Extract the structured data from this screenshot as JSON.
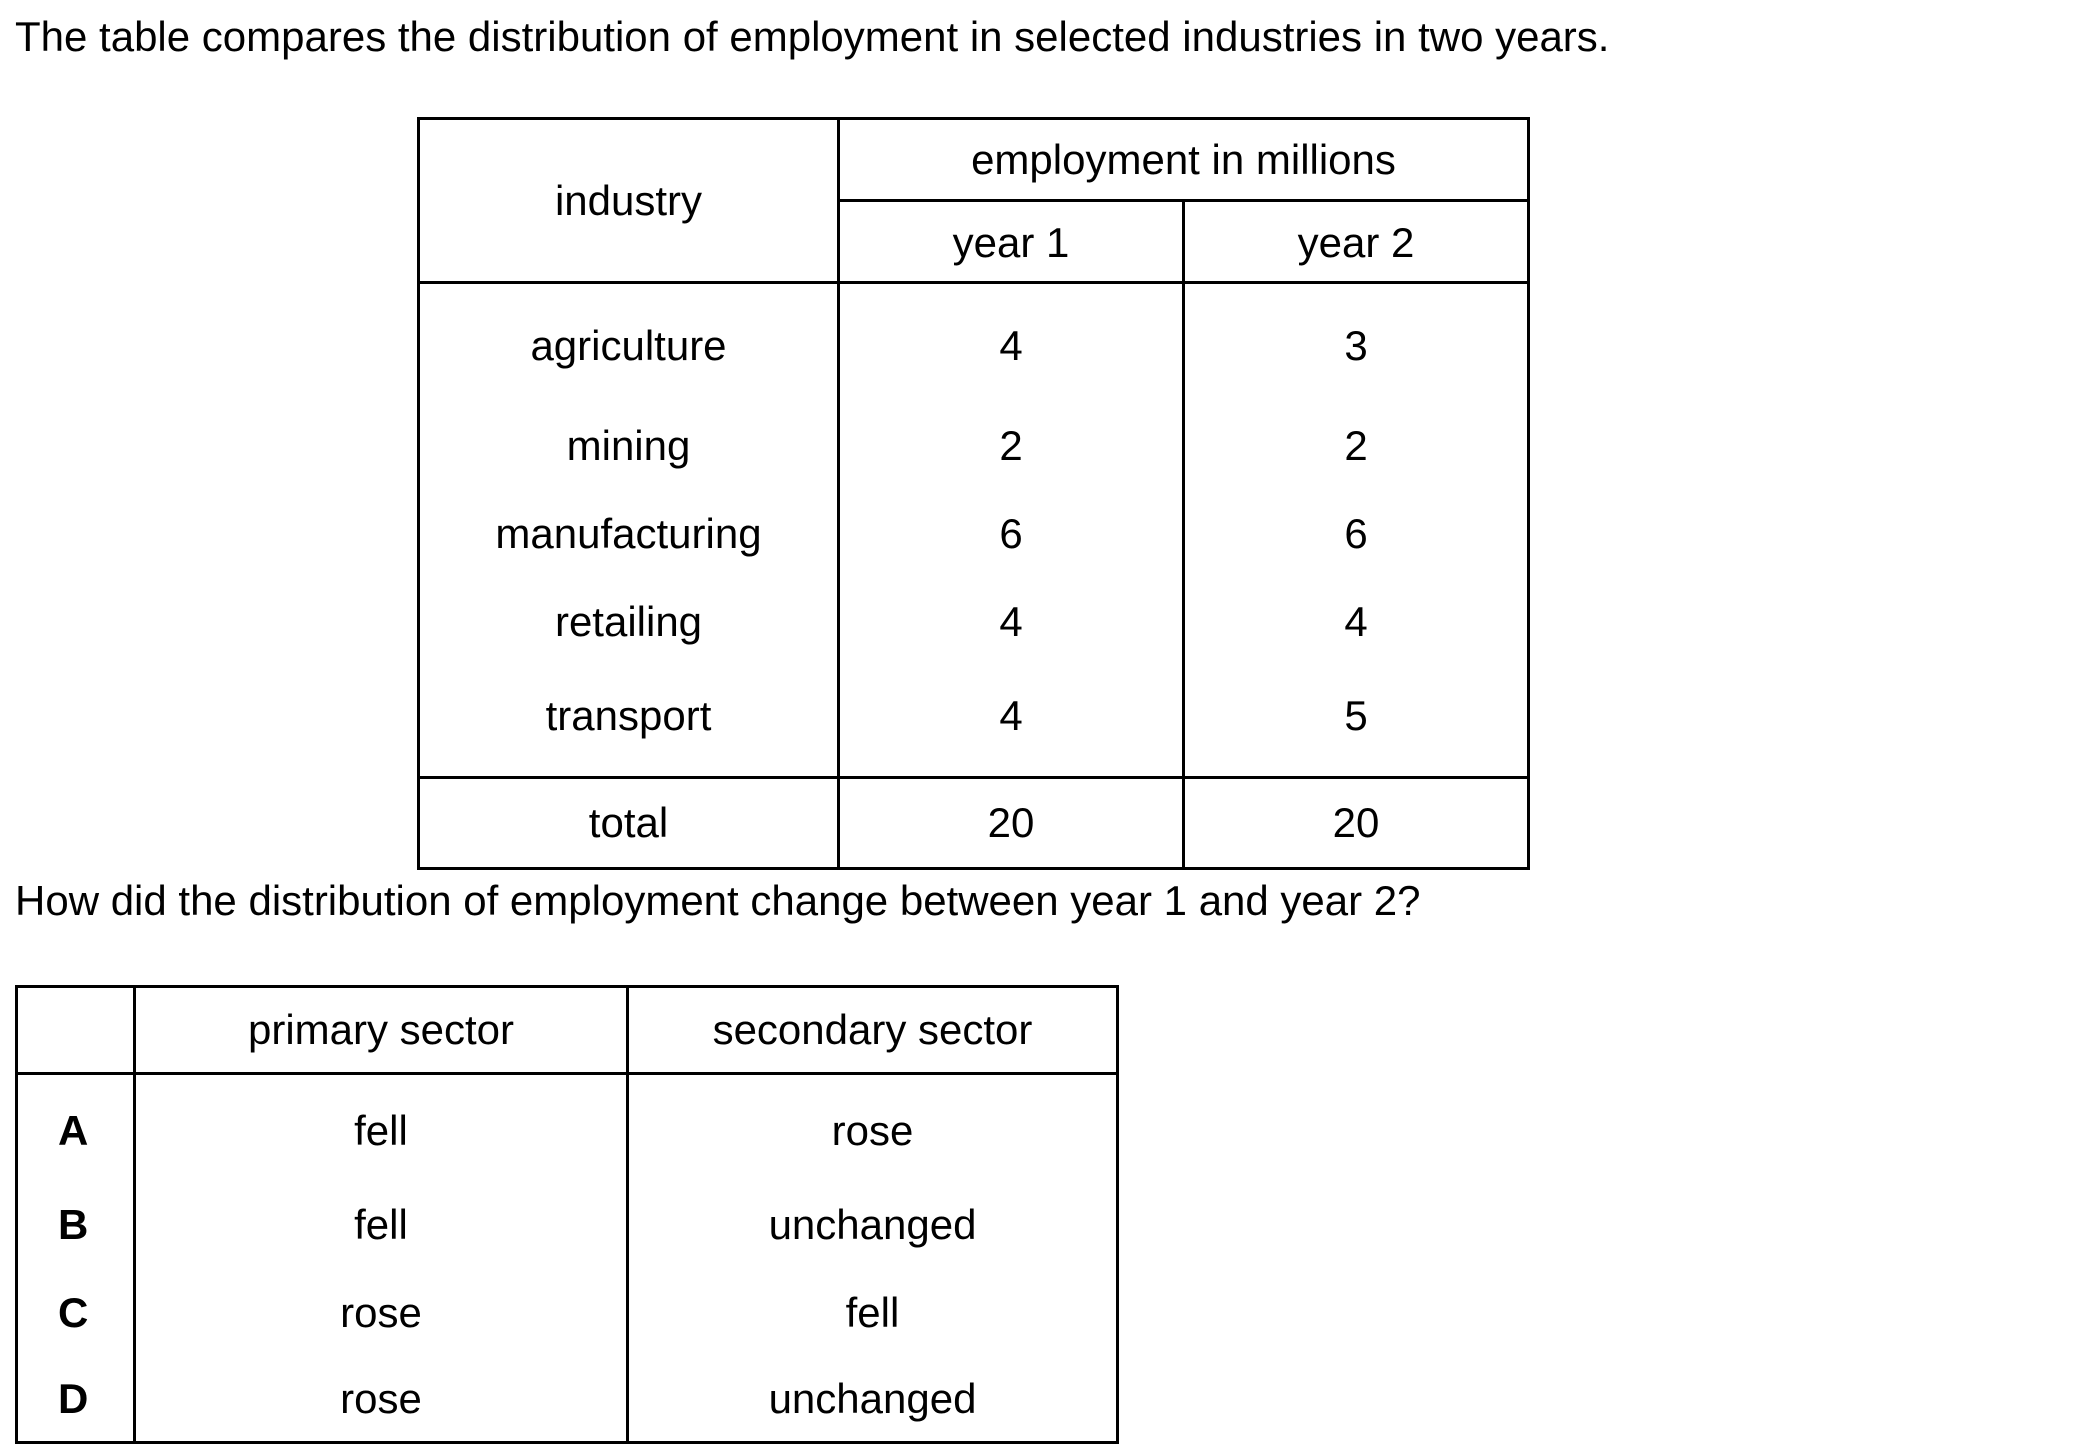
{
  "intro_text": "The table compares the distribution of employment in selected industries in two years.",
  "employment_table": {
    "industry_header": "industry",
    "group_header": "employment in millions",
    "year1_header": "year 1",
    "year2_header": "year 2",
    "rows": [
      {
        "industry": "agriculture",
        "year1": "4",
        "year2": "3"
      },
      {
        "industry": "mining",
        "year1": "2",
        "year2": "2"
      },
      {
        "industry": "manufacturing",
        "year1": "6",
        "year2": "6"
      },
      {
        "industry": "retailing",
        "year1": "4",
        "year2": "4"
      },
      {
        "industry": "transport",
        "year1": "4",
        "year2": "5"
      }
    ],
    "total": {
      "label": "total",
      "year1": "20",
      "year2": "20"
    }
  },
  "question_text": "How did the distribution of employment change between year 1 and year 2?",
  "options_table": {
    "header_blank": "",
    "primary_header": "primary sector",
    "secondary_header": "secondary sector",
    "options": [
      {
        "letter": "A",
        "primary": "fell",
        "secondary": "rose"
      },
      {
        "letter": "B",
        "primary": "fell",
        "secondary": "unchanged"
      },
      {
        "letter": "C",
        "primary": "rose",
        "secondary": "fell"
      },
      {
        "letter": "D",
        "primary": "rose",
        "secondary": "unchanged"
      }
    ]
  }
}
